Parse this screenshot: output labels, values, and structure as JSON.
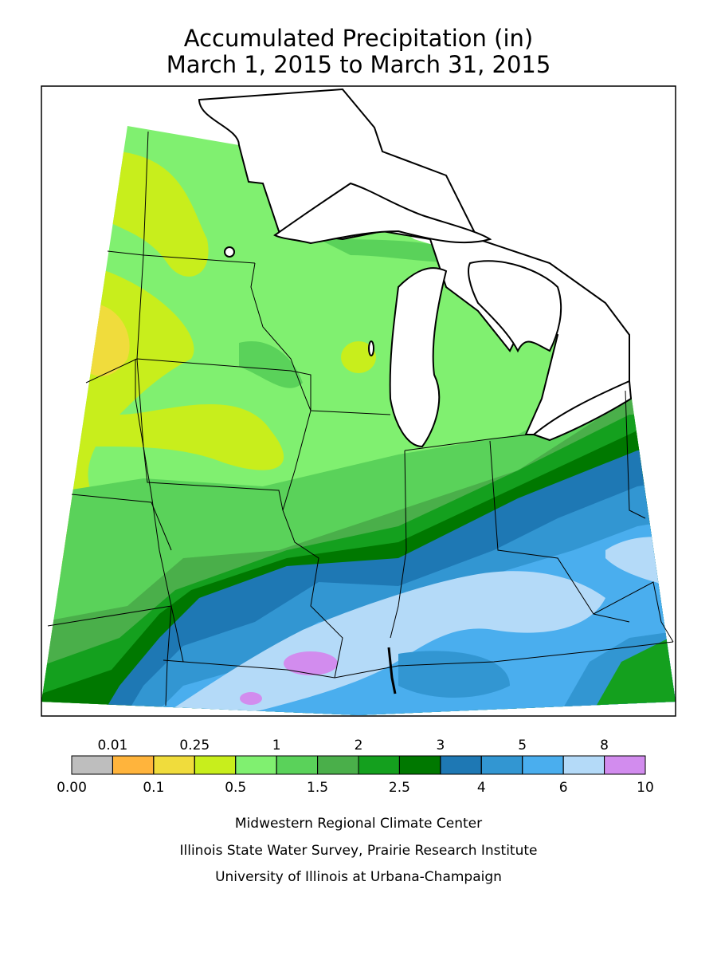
{
  "header": {
    "title": "Accumulated Precipitation (in)",
    "subtitle": "March 1, 2015 to March 31, 2015"
  },
  "legend": {
    "breaks": [
      {
        "value": 0,
        "label": "0.00"
      },
      0.01,
      0.1,
      0.25,
      0.5,
      1,
      1.5,
      2,
      2.5,
      3,
      4,
      5,
      6,
      8,
      10
    ],
    "colors": [
      "#bebebe",
      "#ffb43c",
      "#f0dc3c",
      "#c8ee1c",
      "#80f070",
      "#5ad25a",
      "#4aaf4a",
      "#14a01e",
      "#007800",
      "#1e78b4",
      "#3296d2",
      "#4aaeee",
      "#b4daf8",
      "#d28cee"
    ]
  },
  "footer": {
    "lines": [
      "Midwestern Regional Climate Center",
      "Illinois State Water Survey, Prairie Research Institute",
      "University of Illinois at Urbana-Champaign"
    ]
  }
}
